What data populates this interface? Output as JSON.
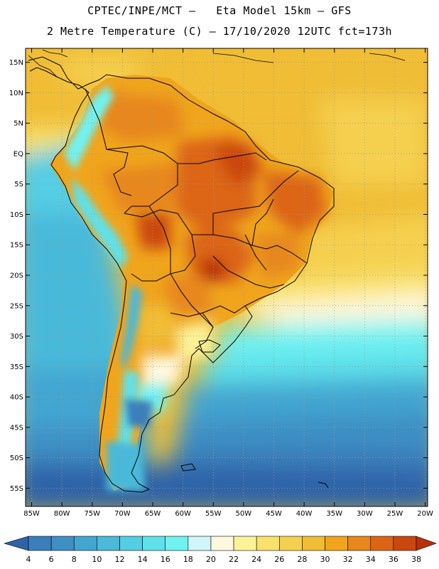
{
  "header": {
    "line1": "CPTEC/INPE/MCT –   Eta Model 15km – GFS",
    "line2": "2 Metre Temperature (C) – 17/10/2020 12UTC fct=173h"
  },
  "map": {
    "lat_labels": [
      "15N",
      "10N",
      "5N",
      "EQ",
      "5S",
      "10S",
      "15S",
      "20S",
      "25S",
      "30S",
      "35S",
      "40S",
      "45S",
      "50S",
      "55S"
    ],
    "lon_labels": [
      "85W",
      "80W",
      "75W",
      "70W",
      "65W",
      "60W",
      "55W",
      "50W",
      "45W",
      "40W",
      "35W",
      "30W",
      "25W",
      "20W"
    ],
    "lat_values": [
      15,
      10,
      5,
      0,
      -5,
      -10,
      -15,
      -20,
      -25,
      -30,
      -35,
      -40,
      -45,
      -50,
      -55
    ],
    "lon_values": [
      -85,
      -80,
      -75,
      -70,
      -65,
      -60,
      -55,
      -50,
      -45,
      -40,
      -35,
      -30,
      -25,
      -20
    ],
    "lat_range": [
      -58,
      17.3
    ],
    "lon_range": [
      -86,
      -19.6
    ]
  },
  "colorbar": {
    "labels": [
      "4",
      "6",
      "8",
      "10",
      "12",
      "14",
      "16",
      "18",
      "20",
      "22",
      "24",
      "26",
      "28",
      "30",
      "32",
      "34",
      "36",
      "38"
    ],
    "colors": [
      "#2f63a8",
      "#3a7fbb",
      "#3d8fc4",
      "#42a6d1",
      "#4ab9da",
      "#55cde3",
      "#5fe1ea",
      "#6ff2f2",
      "#d2f5fb",
      "#fff8de",
      "#fbf298",
      "#f9e26c",
      "#f5d050",
      "#f0bd35",
      "#f0a51c",
      "#e7871c",
      "#dc6514",
      "#cb4710",
      "#b8300c"
    ]
  }
}
